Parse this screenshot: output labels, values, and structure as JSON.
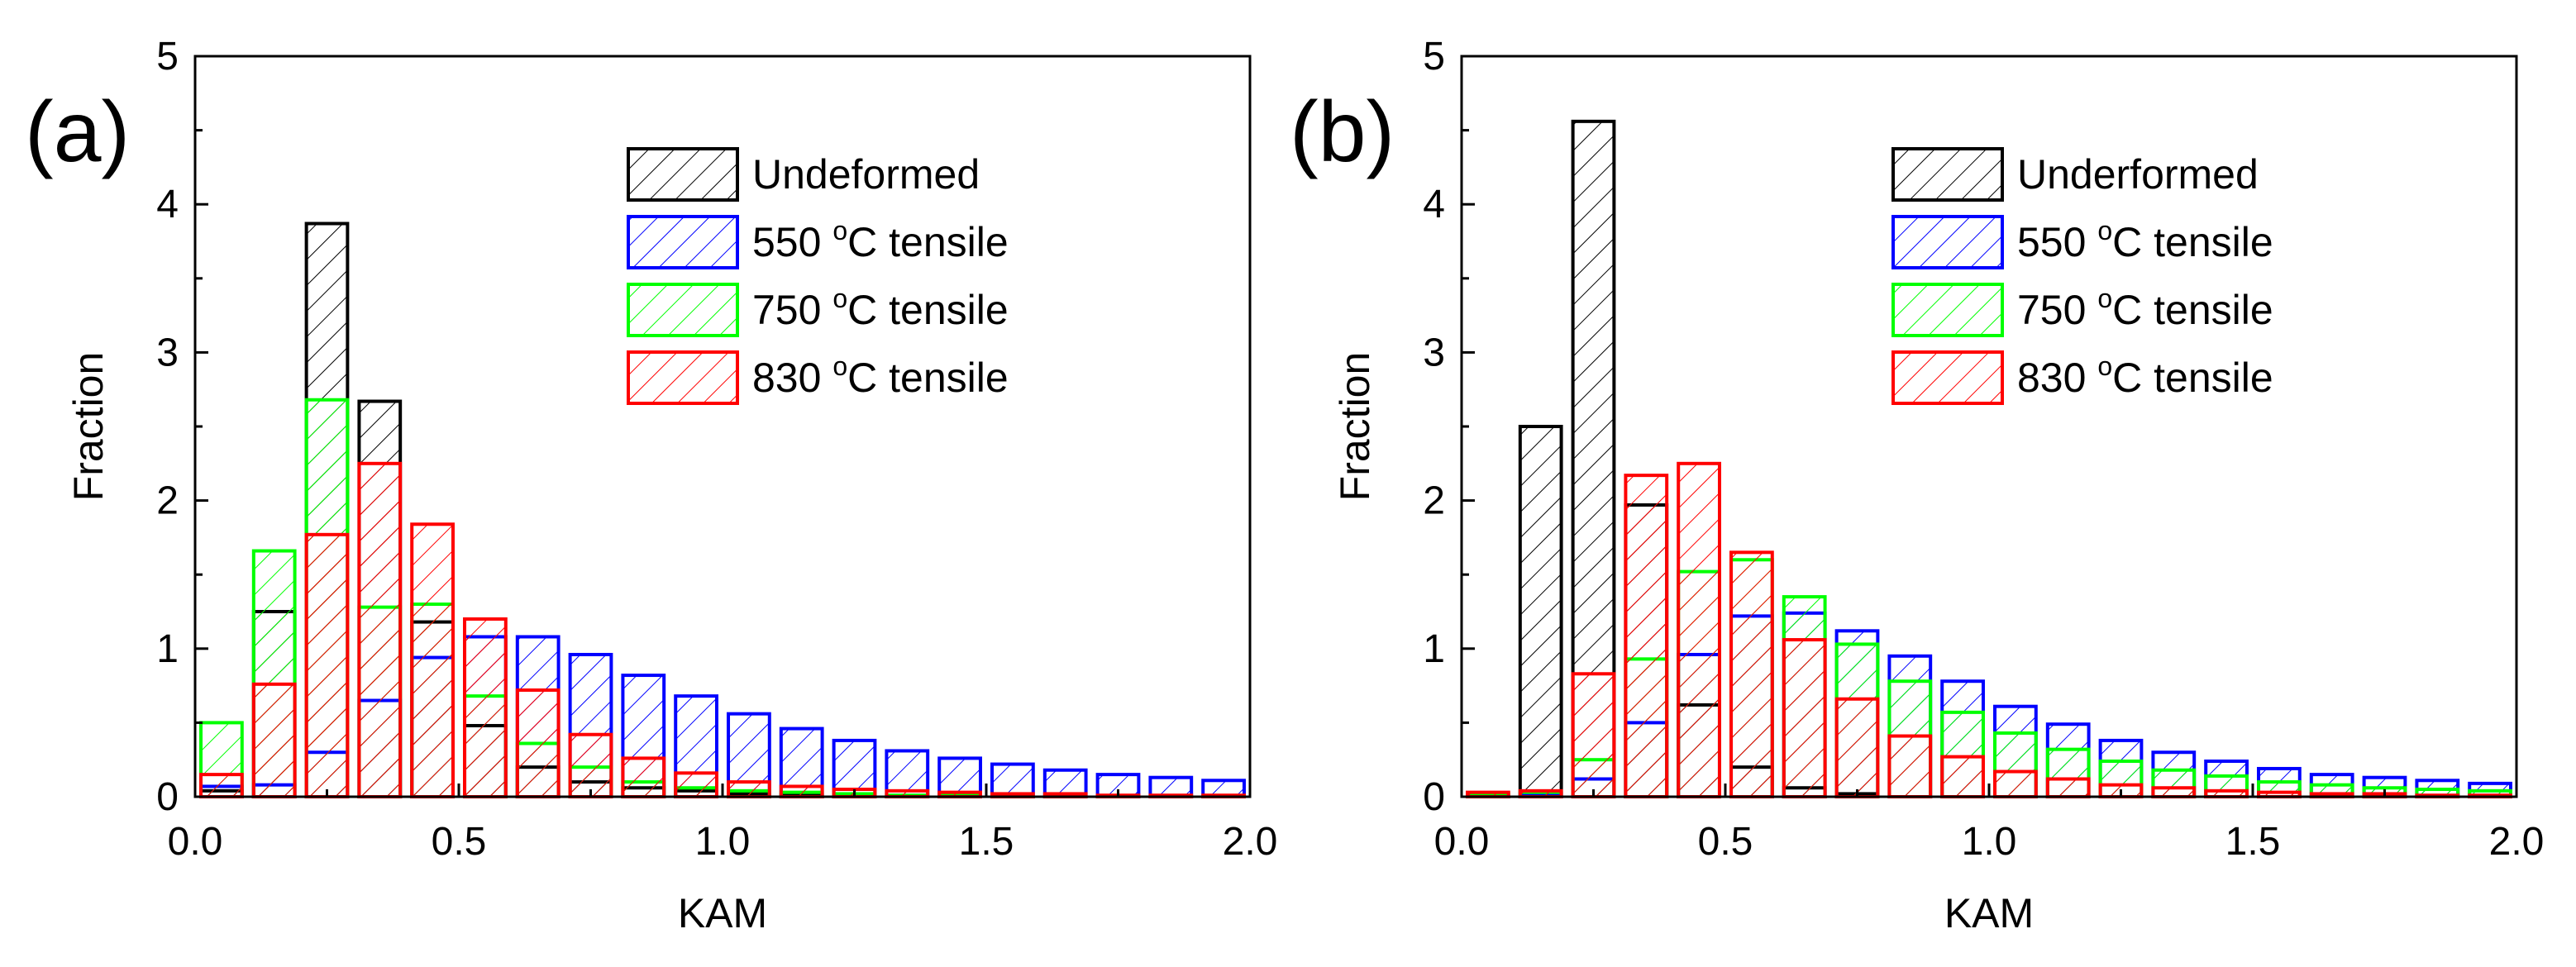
{
  "colors": {
    "Undeformed": "#000000",
    "Underformed": "#000000",
    "550": "#0000ff",
    "750": "#00ff00",
    "830": "#ff0000"
  },
  "chart_data": [
    {
      "type": "bar",
      "panel_label": "(a)",
      "xlabel": "KAM",
      "ylabel": "Fraction",
      "xlim": [
        0.0,
        2.0
      ],
      "ylim": [
        0,
        5
      ],
      "xticks": [
        "0.0",
        "0.5",
        "1.0",
        "1.5",
        "2.0"
      ],
      "yticks": [
        "0",
        "1",
        "2",
        "3",
        "4",
        "5"
      ],
      "legend_position": "top-right",
      "bin_width": 0.1,
      "bins": [
        0.05,
        0.15,
        0.25,
        0.35,
        0.45,
        0.55,
        0.65,
        0.75,
        0.85,
        0.95,
        1.05,
        1.15,
        1.25,
        1.35,
        1.45,
        1.55,
        1.65,
        1.75,
        1.85,
        1.95
      ],
      "series": [
        {
          "name": "Undeformed",
          "color_key": "Undeformed",
          "values": [
            0.04,
            1.25,
            3.87,
            2.67,
            1.18,
            0.48,
            0.2,
            0.1,
            0.06,
            0.04,
            0.02,
            0.01,
            0.01,
            0.0,
            0.0,
            0.0,
            0.0,
            0.0,
            0.0,
            0.0
          ]
        },
        {
          "name": "550 °C tensile",
          "label_parts": [
            "550 ",
            "o",
            "C tensile"
          ],
          "color_key": "550",
          "values": [
            0.07,
            0.08,
            0.3,
            0.65,
            0.94,
            1.08,
            1.08,
            0.96,
            0.82,
            0.68,
            0.56,
            0.46,
            0.38,
            0.31,
            0.26,
            0.22,
            0.18,
            0.15,
            0.13,
            0.11
          ]
        },
        {
          "name": "750 °C tensile",
          "label_parts": [
            "750 ",
            "o",
            "C tensile"
          ],
          "color_key": "750",
          "values": [
            0.5,
            1.66,
            2.68,
            1.28,
            1.3,
            0.68,
            0.36,
            0.2,
            0.1,
            0.06,
            0.04,
            0.03,
            0.02,
            0.01,
            0.01,
            0.0,
            0.0,
            0.0,
            0.0,
            0.0
          ]
        },
        {
          "name": "830 °C tensile",
          "label_parts": [
            "830 ",
            "o",
            "C tensile"
          ],
          "color_key": "830",
          "values": [
            0.15,
            0.76,
            1.77,
            2.25,
            1.84,
            1.2,
            0.72,
            0.42,
            0.26,
            0.16,
            0.1,
            0.07,
            0.05,
            0.04,
            0.03,
            0.02,
            0.02,
            0.01,
            0.01,
            0.01
          ]
        }
      ]
    },
    {
      "type": "bar",
      "panel_label": "(b)",
      "xlabel": "KAM",
      "ylabel": "Fraction",
      "xlim": [
        0.0,
        2.0
      ],
      "ylim": [
        0,
        5
      ],
      "xticks": [
        "0.0",
        "0.5",
        "1.0",
        "1.5",
        "2.0"
      ],
      "yticks": [
        "0",
        "1",
        "2",
        "3",
        "4",
        "5"
      ],
      "legend_position": "top-right",
      "bin_width": 0.1,
      "bins": [
        0.05,
        0.15,
        0.25,
        0.35,
        0.45,
        0.55,
        0.65,
        0.75,
        0.85,
        0.95,
        1.05,
        1.15,
        1.25,
        1.35,
        1.45,
        1.55,
        1.65,
        1.75,
        1.85,
        1.95
      ],
      "series": [
        {
          "name": "Underformed",
          "color_key": "Underformed",
          "values": [
            0.0,
            2.5,
            4.56,
            1.97,
            0.62,
            0.2,
            0.06,
            0.02,
            0.0,
            0.0,
            0.0,
            0.0,
            0.0,
            0.0,
            0.0,
            0.0,
            0.0,
            0.0,
            0.0,
            0.0
          ]
        },
        {
          "name": "550 °C tensile",
          "label_parts": [
            "550 ",
            "o",
            "C tensile"
          ],
          "color_key": "550",
          "values": [
            0.0,
            0.02,
            0.12,
            0.5,
            0.96,
            1.22,
            1.24,
            1.12,
            0.95,
            0.78,
            0.61,
            0.49,
            0.38,
            0.3,
            0.24,
            0.19,
            0.15,
            0.13,
            0.11,
            0.09
          ]
        },
        {
          "name": "750 °C tensile",
          "label_parts": [
            "750 ",
            "o",
            "C tensile"
          ],
          "color_key": "750",
          "values": [
            0.02,
            0.03,
            0.25,
            0.93,
            1.52,
            1.6,
            1.35,
            1.03,
            0.78,
            0.57,
            0.43,
            0.32,
            0.24,
            0.18,
            0.14,
            0.1,
            0.08,
            0.06,
            0.05,
            0.04
          ]
        },
        {
          "name": "830 °C tensile",
          "label_parts": [
            "830 ",
            "o",
            "C tensile"
          ],
          "color_key": "830",
          "values": [
            0.03,
            0.04,
            0.83,
            2.17,
            2.25,
            1.65,
            1.06,
            0.66,
            0.41,
            0.27,
            0.17,
            0.12,
            0.08,
            0.06,
            0.04,
            0.03,
            0.02,
            0.02,
            0.01,
            0.01
          ]
        }
      ]
    }
  ]
}
